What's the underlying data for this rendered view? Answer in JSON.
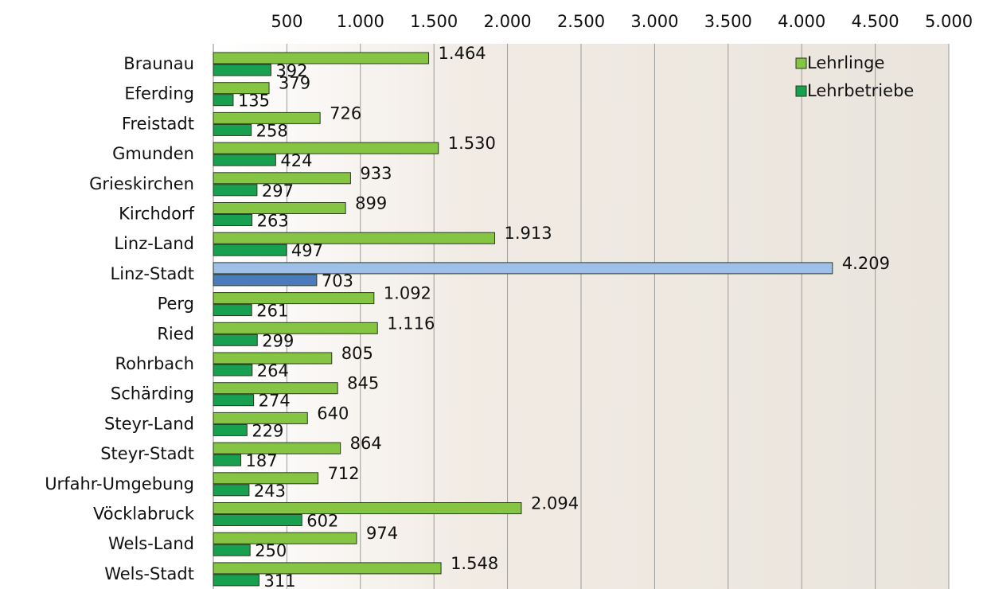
{
  "chart_data": {
    "type": "hbar",
    "categories": [
      "Braunau",
      "Eferding",
      "Freistadt",
      "Gmunden",
      "Grieskirchen",
      "Kirchdorf",
      "Linz-Land",
      "Linz-Stadt",
      "Perg",
      "Ried",
      "Rohrbach",
      "Schärding",
      "Steyr-Land",
      "Steyr-Stadt",
      "Urfahr-Umgebung",
      "Vöcklabruck",
      "Wels-Land",
      "Wels-Stadt"
    ],
    "series": [
      {
        "name": "Lehrlinge",
        "color": "#86c443",
        "highlight_color": "#9dbfe8",
        "values": [
          1464,
          379,
          726,
          1530,
          933,
          899,
          1913,
          4209,
          1092,
          1116,
          805,
          845,
          640,
          864,
          712,
          2094,
          974,
          1548
        ],
        "value_labels": [
          "1.464",
          "379",
          "726",
          "1.530",
          "933",
          "899",
          "1.913",
          "4.209",
          "1.092",
          "1.116",
          "805",
          "845",
          "640",
          "864",
          "712",
          "2.094",
          "974",
          "1.548"
        ]
      },
      {
        "name": "Lehrbetriebe",
        "color": "#16a050",
        "highlight_color": "#4a7bbd",
        "values": [
          392,
          135,
          258,
          424,
          297,
          263,
          497,
          703,
          261,
          299,
          264,
          274,
          229,
          187,
          243,
          602,
          250,
          311
        ],
        "value_labels": [
          "392",
          "135",
          "258",
          "424",
          "297",
          "263",
          "497",
          "703",
          "261",
          "299",
          "264",
          "274",
          "229",
          "187",
          "243",
          "602",
          "250",
          "311"
        ]
      }
    ],
    "highlight_category": "Linz-Stadt",
    "xlim": [
      0,
      5000
    ],
    "xticks": [
      500,
      {
        "value": 1000,
        "label": "1.000"
      },
      {
        "value": 1500,
        "label": "1.500"
      },
      {
        "value": 2000,
        "label": "2.000"
      },
      {
        "value": 2500,
        "label": "2.500"
      },
      {
        "value": 3000,
        "label": "3.000"
      },
      {
        "value": 3500,
        "label": "3.500"
      },
      {
        "value": 4000,
        "label": "4.000"
      },
      {
        "value": 4500,
        "label": "4.500"
      },
      {
        "value": 5000,
        "label": "5.000"
      }
    ],
    "grid": true,
    "legend": "top-right"
  }
}
